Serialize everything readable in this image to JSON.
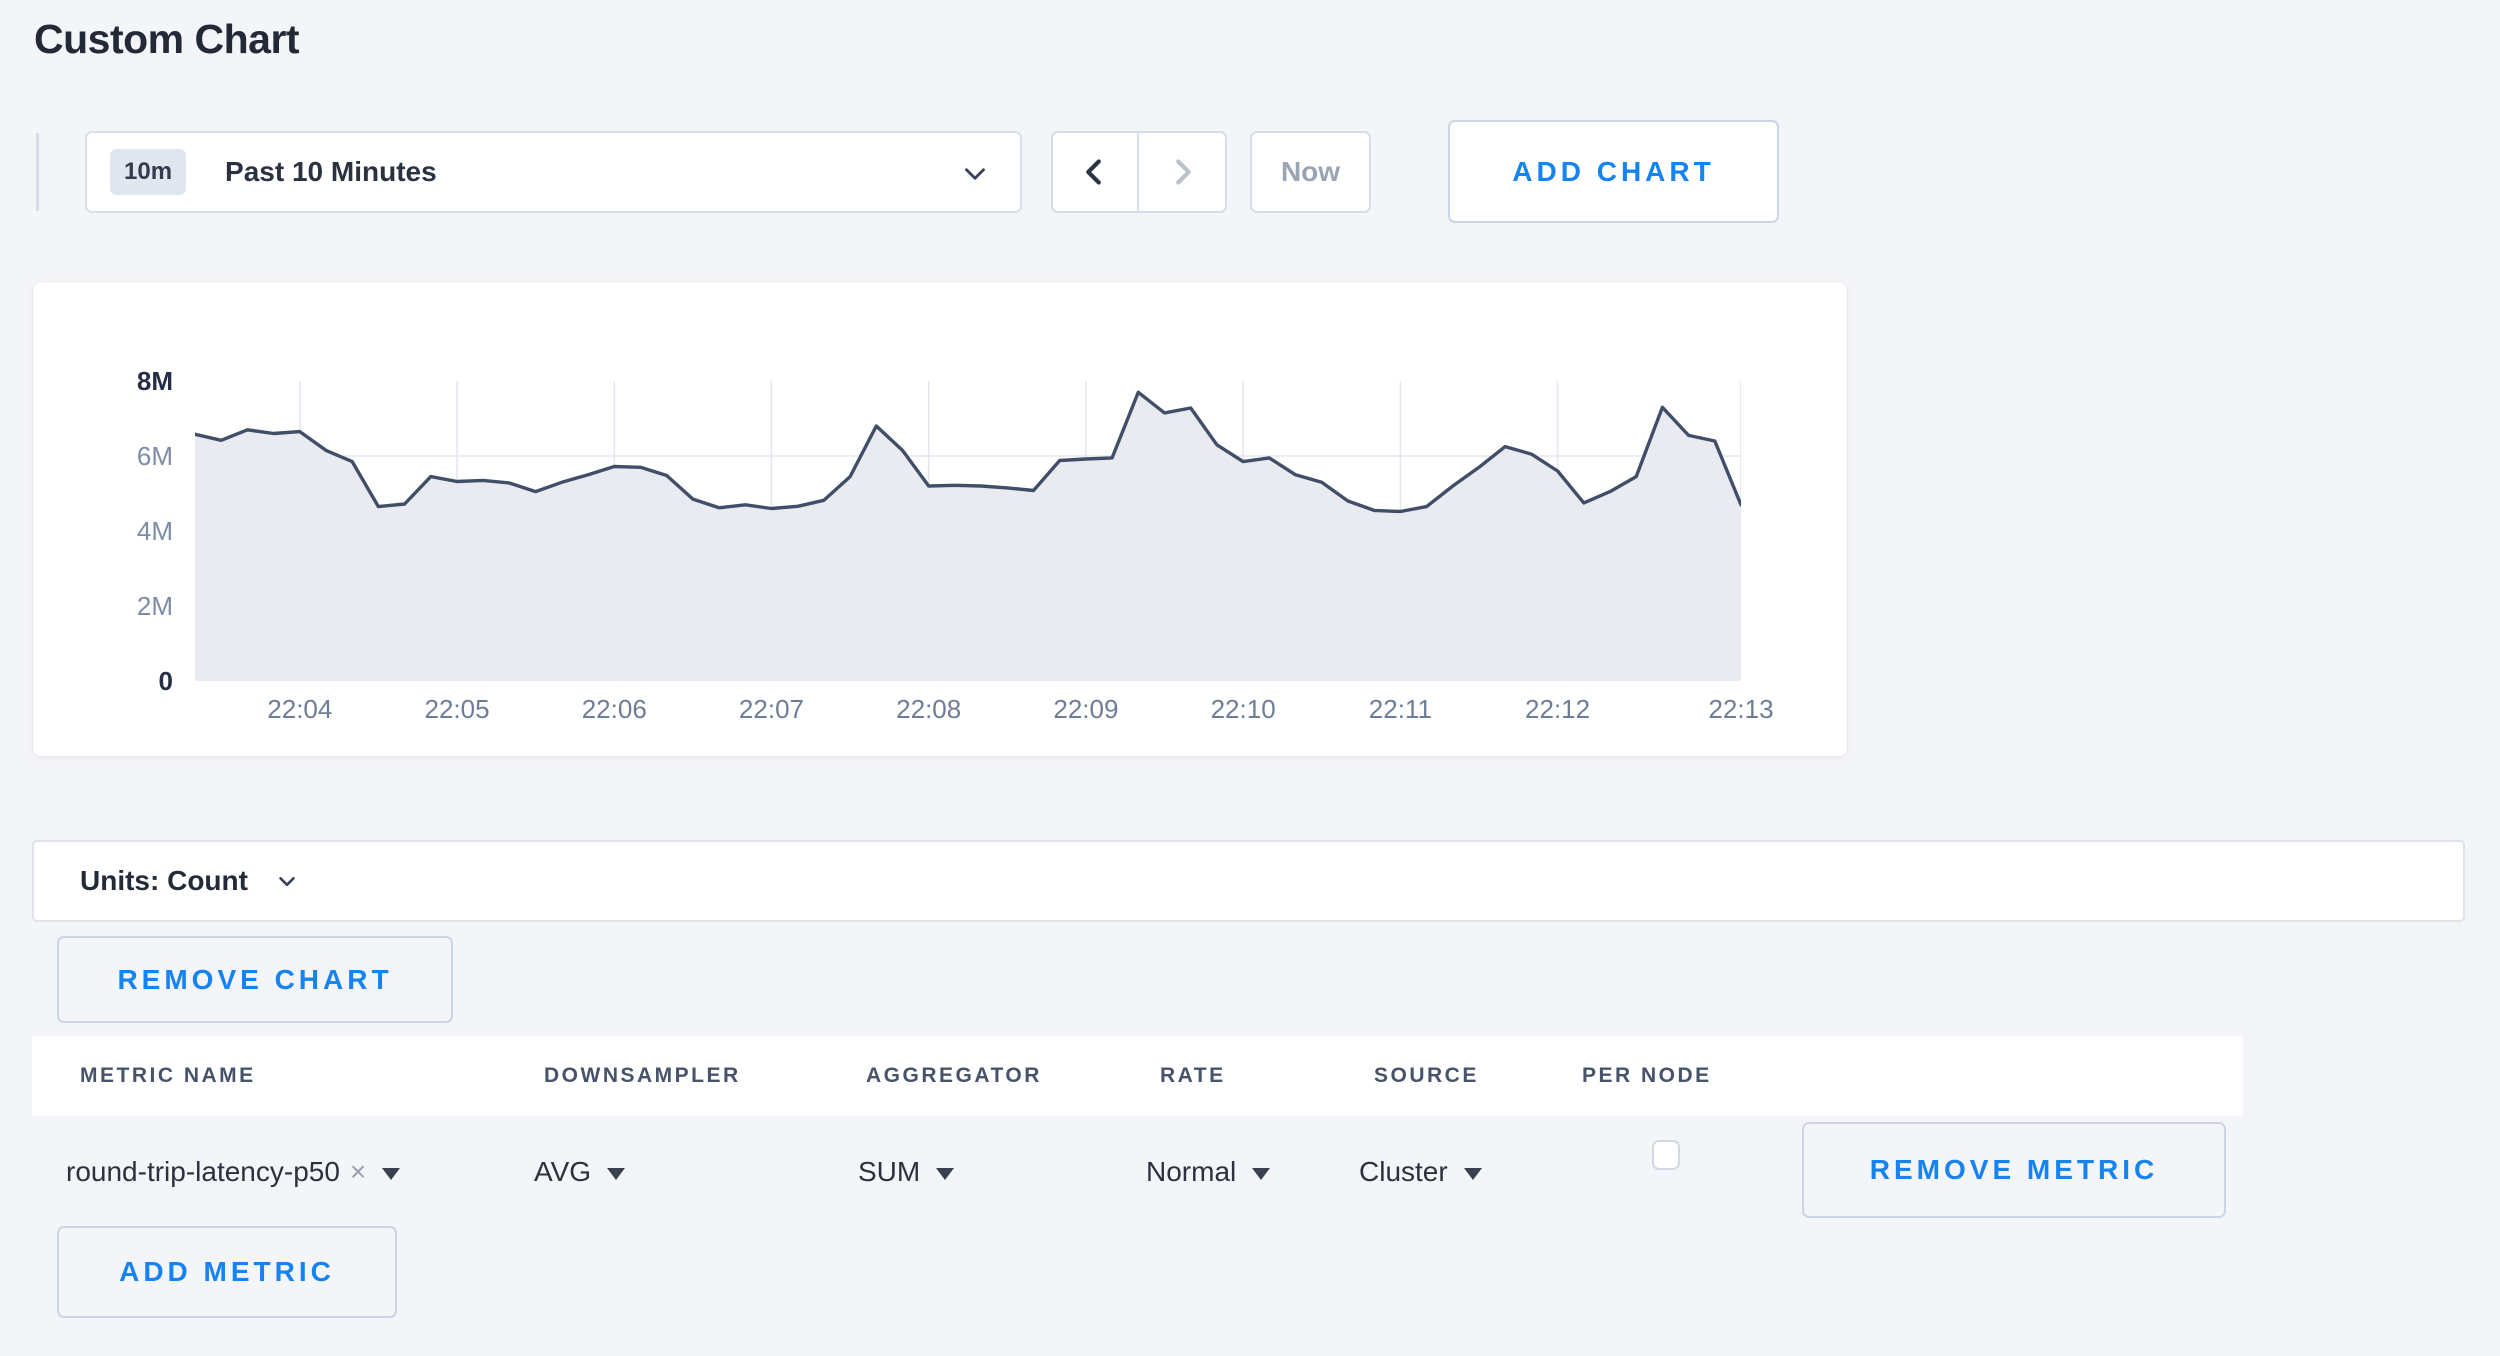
{
  "page": {
    "title": "Custom Chart",
    "background": "#f4f5f9",
    "accent_blue": "#1583f2"
  },
  "toolbar": {
    "range_badge": "10m",
    "range_label": "Past 10 Minutes",
    "prev_icon": "chevron-left",
    "next_icon": "chevron-right",
    "now_label": "Now",
    "add_chart_label": "ADD CHART"
  },
  "chart_data": {
    "type": "area",
    "title": "",
    "xlabel": "",
    "ylabel": "",
    "ylim_millions": [
      0,
      8
    ],
    "ymax_millions": 8,
    "grid": true,
    "legend": "none",
    "line_color": "#404e68",
    "fill_color": "#e9ebf0",
    "grid_color": "#e3e7ef",
    "values_millions": [
      6.58,
      6.42,
      6.7,
      6.6,
      6.65,
      6.15,
      5.85,
      4.65,
      4.72,
      5.45,
      5.32,
      5.35,
      5.28,
      5.05,
      5.3,
      5.5,
      5.72,
      5.7,
      5.48,
      4.85,
      4.62,
      4.7,
      4.6,
      4.66,
      4.82,
      5.45,
      6.8,
      6.15,
      5.2,
      5.22,
      5.2,
      5.15,
      5.08,
      5.88,
      5.92,
      5.95,
      7.7,
      7.15,
      7.28,
      6.3,
      5.85,
      5.95,
      5.5,
      5.3,
      4.8,
      4.55,
      4.52,
      4.65,
      5.2,
      5.7,
      6.25,
      6.05,
      5.6,
      4.75,
      5.05,
      5.45,
      7.3,
      6.55,
      6.4,
      4.7
    ],
    "x_ticks": [
      {
        "i": 4,
        "label": "22:04"
      },
      {
        "i": 10,
        "label": "22:05"
      },
      {
        "i": 16,
        "label": "22:06"
      },
      {
        "i": 22,
        "label": "22:07"
      },
      {
        "i": 28,
        "label": "22:08"
      },
      {
        "i": 34,
        "label": "22:09"
      },
      {
        "i": 40,
        "label": "22:10"
      },
      {
        "i": 46,
        "label": "22:11"
      },
      {
        "i": 52,
        "label": "22:12"
      },
      {
        "i": 59,
        "label": "22:13"
      }
    ],
    "y_ticks": [
      {
        "v": 8,
        "label": "8M",
        "strong": true
      },
      {
        "v": 6,
        "label": "6M",
        "strong": false
      },
      {
        "v": 4,
        "label": "4M",
        "strong": false
      },
      {
        "v": 2,
        "label": "2M",
        "strong": false
      },
      {
        "v": 0,
        "label": "0",
        "strong": true
      }
    ],
    "y_gridlines_millions": [
      2,
      4,
      6
    ]
  },
  "units_bar": {
    "label": "Units: Count"
  },
  "chart_actions": {
    "remove_chart_label": "REMOVE CHART"
  },
  "metrics_table": {
    "headers": [
      "METRIC NAME",
      "DOWNSAMPLER",
      "AGGREGATOR",
      "RATE",
      "SOURCE",
      "PER NODE"
    ],
    "rows": [
      {
        "metric": "round-trip-latency-p50",
        "clear_icon": "x-clear",
        "downsampler": "AVG",
        "aggregator": "SUM",
        "rate": "Normal",
        "source": "Cluster",
        "per_node_checked": false,
        "remove_label": "REMOVE METRIC"
      }
    ],
    "add_metric_label": "ADD METRIC"
  }
}
